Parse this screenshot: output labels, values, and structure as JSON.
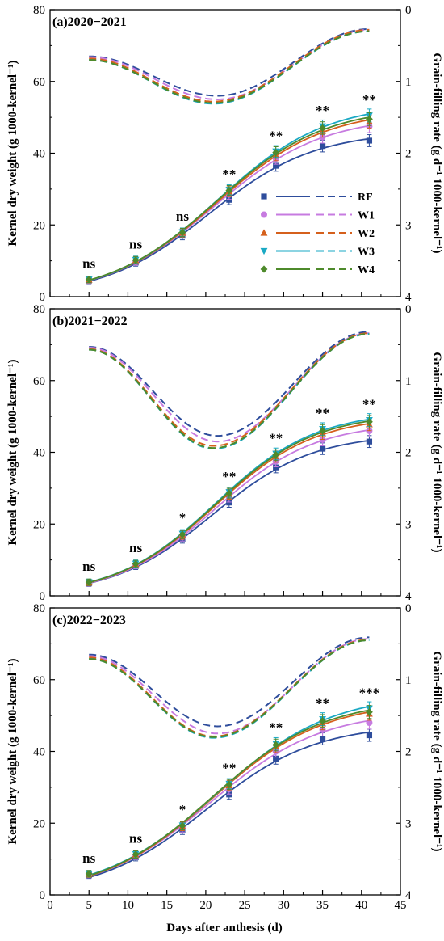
{
  "figure": {
    "ylabel_left": "Kernel dry weight (g 1000-kernel⁻¹)",
    "ylabel_right": "Grain-filling rate (g d⁻¹ 1000-kernel⁻¹)",
    "xlabel": "Days after anthesis (d)"
  },
  "legend": [
    {
      "label": "RF",
      "color": "#2e4d9c",
      "marker": "square"
    },
    {
      "label": "W1",
      "color": "#c77be0",
      "marker": "circle"
    },
    {
      "label": "W2",
      "color": "#d5601c",
      "marker": "triangle"
    },
    {
      "label": "W3",
      "color": "#1aa9c4",
      "marker": "triangle-down"
    },
    {
      "label": "W4",
      "color": "#4e8a2b",
      "marker": "diamond"
    }
  ],
  "chart_data": [
    {
      "type": "line",
      "title": "(a)2020−2021",
      "xlim": [
        0,
        45
      ],
      "ylim": [
        0,
        80
      ],
      "y2lim": [
        0,
        4
      ],
      "y2_inverted": true,
      "x": [
        5,
        11,
        17,
        23,
        29,
        35,
        41
      ],
      "significance": [
        "ns",
        "ns",
        "ns",
        "**",
        "**",
        "**",
        "**"
      ],
      "series": [
        {
          "name": "RF",
          "color": "#2e4d9c",
          "weight": [
            4.5,
            9.5,
            17.0,
            27.0,
            36.5,
            42.0,
            43.5
          ],
          "rate": {
            "start": 0.65,
            "min": 1.2,
            "tmin": 21.5,
            "end": 0.27
          }
        },
        {
          "name": "W1",
          "color": "#c77be0",
          "weight": [
            4.6,
            9.8,
            17.5,
            28.5,
            38.5,
            44.5,
            47.5
          ],
          "rate": {
            "start": 0.66,
            "min": 1.25,
            "tmin": 21.5,
            "end": 0.28
          }
        },
        {
          "name": "W2",
          "color": "#d5601c",
          "weight": [
            4.7,
            10.1,
            17.8,
            29.3,
            39.5,
            46.2,
            48.8
          ],
          "rate": {
            "start": 0.68,
            "min": 1.28,
            "tmin": 21.0,
            "end": 0.28
          }
        },
        {
          "name": "W3",
          "color": "#1aa9c4",
          "weight": [
            4.8,
            10.3,
            18.0,
            29.8,
            40.5,
            47.5,
            50.5
          ],
          "rate": {
            "start": 0.7,
            "min": 1.31,
            "tmin": 21.0,
            "end": 0.3
          }
        },
        {
          "name": "W4",
          "color": "#4e8a2b",
          "weight": [
            4.8,
            10.2,
            17.9,
            29.6,
            40.2,
            47.0,
            49.5
          ],
          "rate": {
            "start": 0.7,
            "min": 1.3,
            "tmin": 21.0,
            "end": 0.3
          }
        }
      ]
    },
    {
      "type": "line",
      "title": "(b)2021−2022",
      "xlim": [
        0,
        45
      ],
      "ylim": [
        0,
        80
      ],
      "y2lim": [
        0,
        4
      ],
      "y2_inverted": true,
      "x": [
        5,
        11,
        17,
        23,
        29,
        35,
        41
      ],
      "significance": [
        "ns",
        "ns",
        "*",
        "**",
        "**",
        "**",
        "**"
      ],
      "series": [
        {
          "name": "RF",
          "color": "#2e4d9c",
          "weight": [
            3.5,
            8.3,
            15.8,
            26.0,
            35.8,
            41.0,
            43.0
          ],
          "rate": {
            "start": 0.53,
            "min": 1.77,
            "tmin": 21.5,
            "end": 0.32
          }
        },
        {
          "name": "W1",
          "color": "#c77be0",
          "weight": [
            3.6,
            8.6,
            16.4,
            27.5,
            37.5,
            43.5,
            46.0
          ],
          "rate": {
            "start": 0.54,
            "min": 1.85,
            "tmin": 21.5,
            "end": 0.34
          }
        },
        {
          "name": "W2",
          "color": "#d5601c",
          "weight": [
            3.7,
            8.8,
            16.9,
            28.3,
            38.8,
            45.3,
            47.8
          ],
          "rate": {
            "start": 0.56,
            "min": 1.91,
            "tmin": 21.0,
            "end": 0.34
          }
        },
        {
          "name": "W3",
          "color": "#1aa9c4",
          "weight": [
            3.8,
            9.0,
            17.3,
            28.9,
            39.6,
            46.5,
            49.0
          ],
          "rate": {
            "start": 0.57,
            "min": 1.95,
            "tmin": 21.0,
            "end": 0.35
          }
        },
        {
          "name": "W4",
          "color": "#4e8a2b",
          "weight": [
            3.8,
            8.9,
            17.1,
            28.6,
            39.3,
            46.0,
            48.5
          ],
          "rate": {
            "start": 0.57,
            "min": 1.94,
            "tmin": 21.0,
            "end": 0.35
          }
        }
      ]
    },
    {
      "type": "line",
      "title": "(c)2022−2023",
      "xlim": [
        0,
        45
      ],
      "ylim": [
        0,
        80
      ],
      "y2lim": [
        0,
        4
      ],
      "y2_inverted": true,
      "x": [
        5,
        11,
        17,
        23,
        29,
        35,
        41
      ],
      "significance": [
        "ns",
        "ns",
        "*",
        "**",
        "**",
        "**",
        "***"
      ],
      "series": [
        {
          "name": "RF",
          "color": "#2e4d9c",
          "weight": [
            5.5,
            10.5,
            18.0,
            28.0,
            38.0,
            43.5,
            44.5
          ],
          "rate": {
            "start": 0.65,
            "min": 1.65,
            "tmin": 21.5,
            "end": 0.41
          }
        },
        {
          "name": "W1",
          "color": "#c77be0",
          "weight": [
            5.7,
            10.9,
            18.7,
            29.5,
            40.0,
            46.0,
            48.0
          ],
          "rate": {
            "start": 0.67,
            "min": 1.75,
            "tmin": 21.5,
            "end": 0.43
          }
        },
        {
          "name": "W2",
          "color": "#d5601c",
          "weight": [
            5.8,
            11.2,
            19.1,
            30.5,
            41.3,
            47.8,
            50.5
          ],
          "rate": {
            "start": 0.69,
            "min": 1.79,
            "tmin": 21.0,
            "end": 0.44
          }
        },
        {
          "name": "W3",
          "color": "#1aa9c4",
          "weight": [
            5.9,
            11.4,
            19.4,
            31.0,
            42.2,
            49.0,
            52.0
          ],
          "rate": {
            "start": 0.71,
            "min": 1.81,
            "tmin": 21.0,
            "end": 0.45
          }
        },
        {
          "name": "W4",
          "color": "#4e8a2b",
          "weight": [
            5.9,
            11.3,
            19.3,
            30.8,
            41.8,
            48.5,
            51.0
          ],
          "rate": {
            "start": 0.71,
            "min": 1.8,
            "tmin": 21.0,
            "end": 0.45
          }
        }
      ]
    }
  ]
}
